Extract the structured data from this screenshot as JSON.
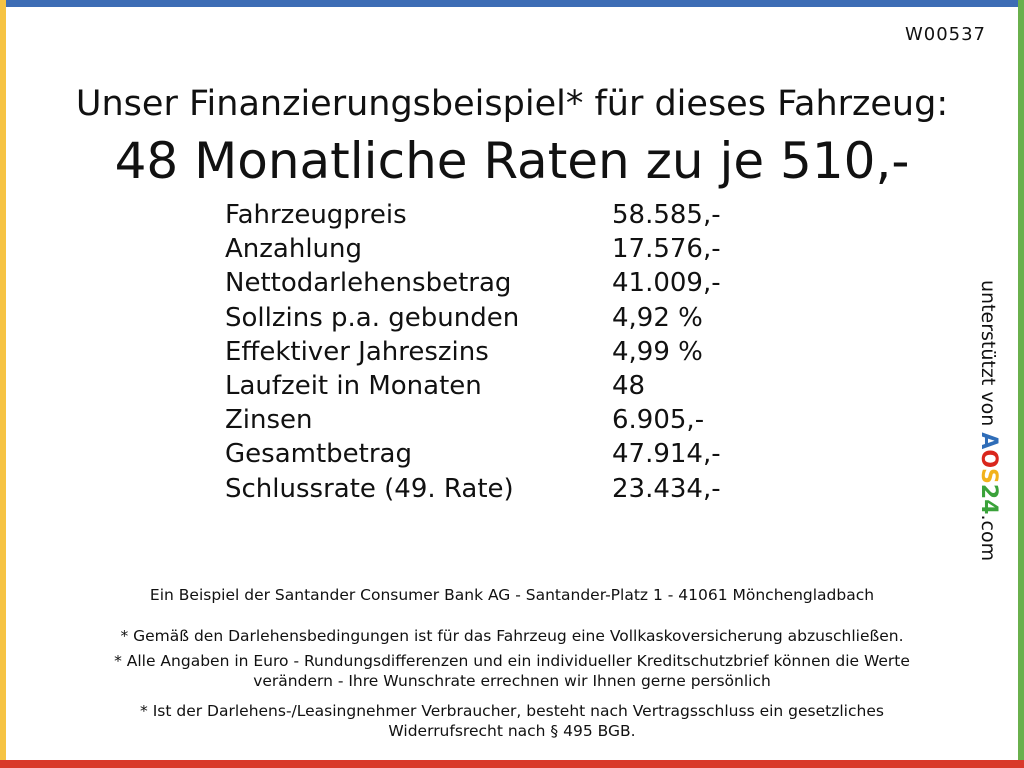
{
  "header": {
    "code": "W00537",
    "title": "Unser Finanzierungsbeispiel* für dieses Fahrzeug:",
    "headline": "48 Monatliche Raten zu je 510,-"
  },
  "table": {
    "rows": [
      [
        "Fahrzeugpreis",
        "58.585,-"
      ],
      [
        "Anzahlung",
        "17.576,-"
      ],
      [
        "Nettodarlehensbetrag",
        "41.009,-"
      ],
      [
        "Sollzins p.a. gebunden",
        "4,92 %"
      ],
      [
        "Effektiver Jahreszins",
        "4,99 %"
      ],
      [
        "Laufzeit in Monaten",
        "48"
      ],
      [
        "Zinsen",
        "6.905,-"
      ],
      [
        "Gesamtbetrag",
        "47.914,-"
      ],
      [
        "Schlussrate (49. Rate)",
        "23.434,-"
      ]
    ]
  },
  "sidebar": {
    "prefix": "unterstützt von",
    "logo": [
      "A",
      "O",
      "S",
      "2",
      "4"
    ],
    "suffix": ".com"
  },
  "footer": {
    "lines": [
      "Ein Beispiel der Santander Consumer Bank AG - Santander-Platz 1 - 41061 Mönchengladbach",
      "* Gemäß den Darlehensbedingungen ist für das Fahrzeug eine Vollkaskoversicherung abzuschließen.",
      "* Alle Angaben in Euro - Rundungsdifferenzen und ein individueller Kreditschutzbrief können die Werte",
      "verändern - Ihre Wunschrate errechnen wir Ihnen gerne persönlich",
      "* Ist der Darlehens-/Leasingnehmer Verbraucher, besteht nach Vertragsschluss ein gesetzliches",
      "Widerrufsrecht nach § 495 BGB."
    ]
  }
}
